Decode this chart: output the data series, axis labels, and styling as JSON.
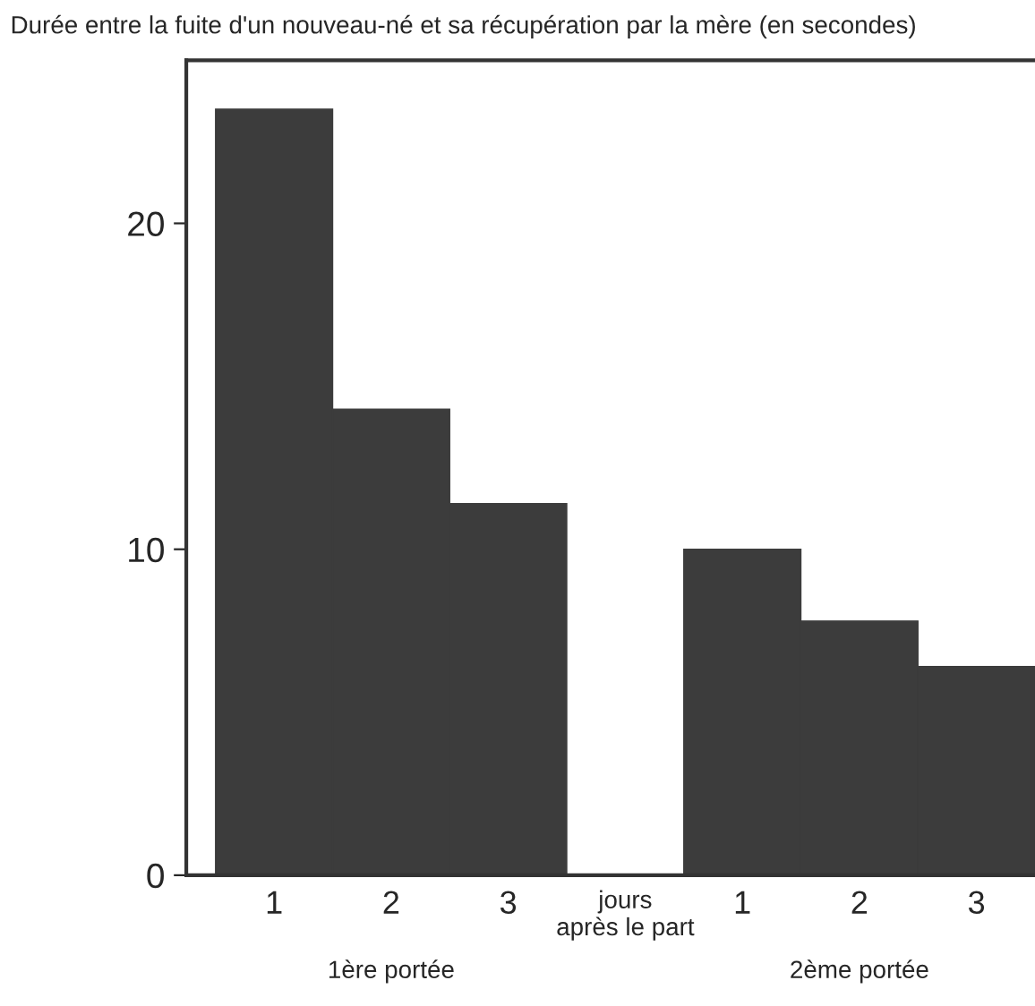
{
  "chart_data": {
    "type": "bar",
    "title": "Durée entre la fuite d'un nouveau-né et sa récupération par la mère (en secondes)",
    "categories": [
      "1",
      "2",
      "3",
      "jours\naprès le part",
      "1",
      "2",
      "3"
    ],
    "values": [
      23.5,
      14.3,
      11.4,
      null,
      10.0,
      7.8,
      6.4
    ],
    "color": "#3c3c3c",
    "ylim": [
      0,
      25
    ],
    "yticks": [
      0,
      10,
      20
    ],
    "grid": false,
    "annotations": [
      "1ère portée",
      "2ème portée"
    ]
  }
}
